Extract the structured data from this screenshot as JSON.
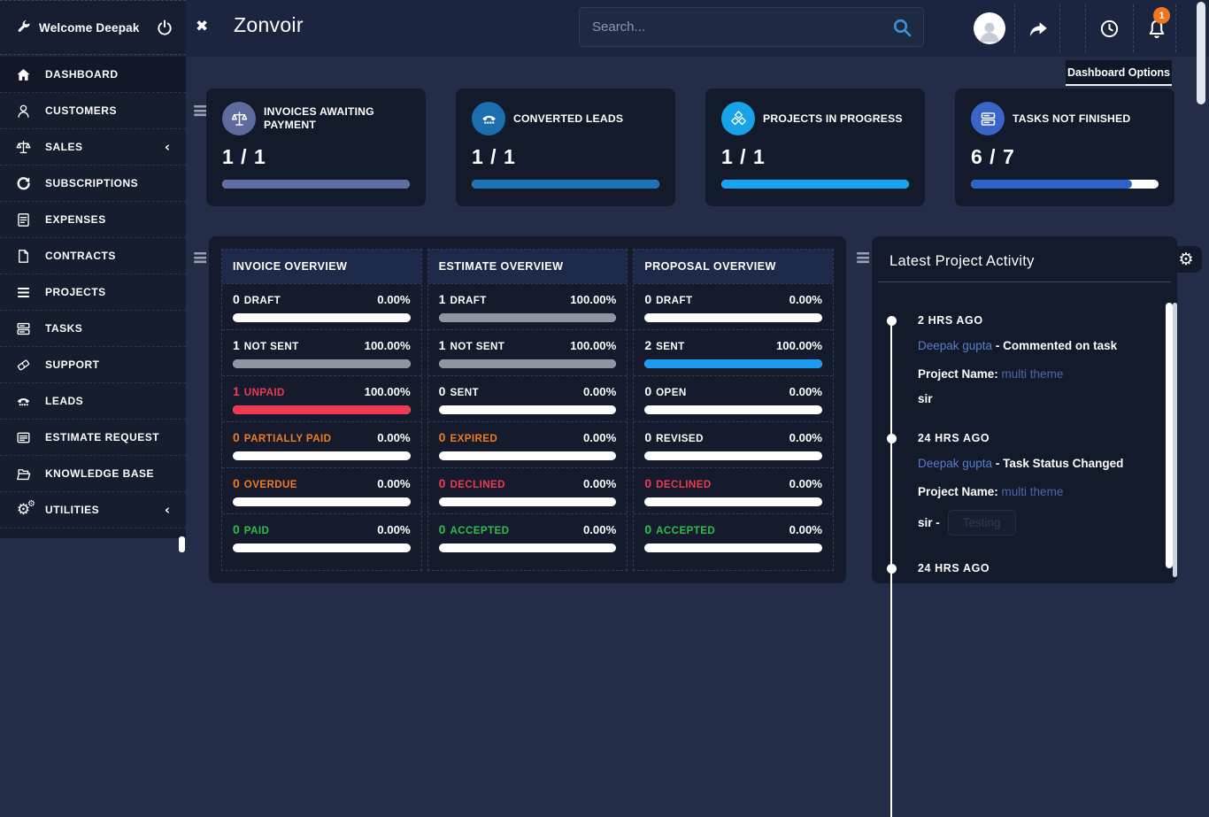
{
  "topbar": {
    "welcome_label": "Welcome Deepak",
    "brand": "Zonvoir",
    "search_placeholder": "Search...",
    "notification_count": "1",
    "dashboard_options_label": "Dashboard Options"
  },
  "sidebar": {
    "items": [
      {
        "label": "DASHBOARD",
        "icon": "home",
        "active": true
      },
      {
        "label": "CUSTOMERS",
        "icon": "person"
      },
      {
        "label": "SALES",
        "icon": "scales",
        "chevron": true
      },
      {
        "label": "SUBSCRIPTIONS",
        "icon": "refresh"
      },
      {
        "label": "EXPENSES",
        "icon": "receipt"
      },
      {
        "label": "CONTRACTS",
        "icon": "file"
      },
      {
        "label": "PROJECTS",
        "icon": "menu"
      },
      {
        "label": "TASKS",
        "icon": "server"
      },
      {
        "label": "SUPPORT",
        "icon": "ticket"
      },
      {
        "label": "LEADS",
        "icon": "phone"
      },
      {
        "label": "ESTIMATE REQUEST",
        "icon": "card"
      },
      {
        "label": "KNOWLEDGE BASE",
        "icon": "folder"
      },
      {
        "label": "UTILITIES",
        "icon": "gears",
        "chevron": true
      }
    ]
  },
  "stats": [
    {
      "title": "INVOICES AWAITING PAYMENT",
      "value": "1 / 1",
      "icon": "scales",
      "circle_color": "#5e6b9c",
      "bar_color": "#5e6fa7",
      "progress_pct": 100
    },
    {
      "title": "CONVERTED LEADS",
      "value": "1 / 1",
      "icon": "phone",
      "circle_color": "#1b6fae",
      "bar_color": "#1a74b8",
      "progress_pct": 100
    },
    {
      "title": "PROJECTS IN PROGRESS",
      "value": "1 / 1",
      "icon": "cubes",
      "circle_color": "#18a3e8",
      "bar_color": "#16a5f0",
      "progress_pct": 100
    },
    {
      "title": "TASKS NOT FINISHED",
      "value": "6 / 7",
      "icon": "server",
      "circle_color": "#3a64c6",
      "bar_color": "#2f62c8",
      "progress_pct": 86
    }
  ],
  "overviews": [
    {
      "title": "INVOICE OVERVIEW",
      "rows": [
        {
          "count": "0",
          "label": "DRAFT",
          "pct": "0.00%",
          "label_color": "#ffffff",
          "bar_color": "#ffffff",
          "fill_pct": 0
        },
        {
          "count": "1",
          "label": "NOT SENT",
          "pct": "100.00%",
          "label_color": "#ffffff",
          "bar_color": "#8f96a2",
          "fill_pct": 100
        },
        {
          "count": "1",
          "label": "UNPAID",
          "pct": "100.00%",
          "label_color": "#ef3950",
          "bar_color": "#ef3950",
          "fill_pct": 100
        },
        {
          "count": "0",
          "label": "PARTIALLY PAID",
          "pct": "0.00%",
          "label_color": "#ee7b25",
          "bar_color": "#ffffff",
          "fill_pct": 0
        },
        {
          "count": "0",
          "label": "OVERDUE",
          "pct": "0.00%",
          "label_color": "#ee7b25",
          "bar_color": "#ffffff",
          "fill_pct": 0
        },
        {
          "count": "0",
          "label": "PAID",
          "pct": "0.00%",
          "label_color": "#2dbd4f",
          "bar_color": "#ffffff",
          "fill_pct": 0
        }
      ]
    },
    {
      "title": "ESTIMATE OVERVIEW",
      "rows": [
        {
          "count": "1",
          "label": "DRAFT",
          "pct": "100.00%",
          "label_color": "#ffffff",
          "bar_color": "#8f96a2",
          "fill_pct": 100
        },
        {
          "count": "1",
          "label": "NOT SENT",
          "pct": "100.00%",
          "label_color": "#ffffff",
          "bar_color": "#8f96a2",
          "fill_pct": 100
        },
        {
          "count": "0",
          "label": "SENT",
          "pct": "0.00%",
          "label_color": "#ffffff",
          "bar_color": "#ffffff",
          "fill_pct": 0
        },
        {
          "count": "0",
          "label": "EXPIRED",
          "pct": "0.00%",
          "label_color": "#ee7b25",
          "bar_color": "#ffffff",
          "fill_pct": 0
        },
        {
          "count": "0",
          "label": "DECLINED",
          "pct": "0.00%",
          "label_color": "#ef3950",
          "bar_color": "#ffffff",
          "fill_pct": 0
        },
        {
          "count": "0",
          "label": "ACCEPTED",
          "pct": "0.00%",
          "label_color": "#2dbd4f",
          "bar_color": "#ffffff",
          "fill_pct": 0
        }
      ]
    },
    {
      "title": "PROPOSAL OVERVIEW",
      "rows": [
        {
          "count": "0",
          "label": "DRAFT",
          "pct": "0.00%",
          "label_color": "#ffffff",
          "bar_color": "#ffffff",
          "fill_pct": 0
        },
        {
          "count": "2",
          "label": "SENT",
          "pct": "100.00%",
          "label_color": "#ffffff",
          "bar_color": "#1b9cf0",
          "fill_pct": 100
        },
        {
          "count": "0",
          "label": "OPEN",
          "pct": "0.00%",
          "label_color": "#ffffff",
          "bar_color": "#ffffff",
          "fill_pct": 0
        },
        {
          "count": "0",
          "label": "REVISED",
          "pct": "0.00%",
          "label_color": "#ffffff",
          "bar_color": "#ffffff",
          "fill_pct": 0
        },
        {
          "count": "0",
          "label": "DECLINED",
          "pct": "0.00%",
          "label_color": "#ef3950",
          "bar_color": "#ffffff",
          "fill_pct": 0
        },
        {
          "count": "0",
          "label": "ACCEPTED",
          "pct": "0.00%",
          "label_color": "#2dbd4f",
          "bar_color": "#ffffff",
          "fill_pct": 0
        }
      ]
    }
  ],
  "activity": {
    "title": "Latest Project Activity",
    "entries": [
      {
        "time": "2 HRS AGO",
        "actor": "Deepak gupta",
        "action": "- Commented on task",
        "project_label": "Project Name:",
        "project": "multi theme",
        "note": "sir"
      },
      {
        "time": "24 HRS AGO",
        "actor": "Deepak gupta",
        "action": "- Task Status Changed",
        "project_label": "Project Name:",
        "project": "multi theme",
        "note": "sir -",
        "badge": "Testing"
      },
      {
        "time": "24 HRS AGO"
      }
    ]
  }
}
